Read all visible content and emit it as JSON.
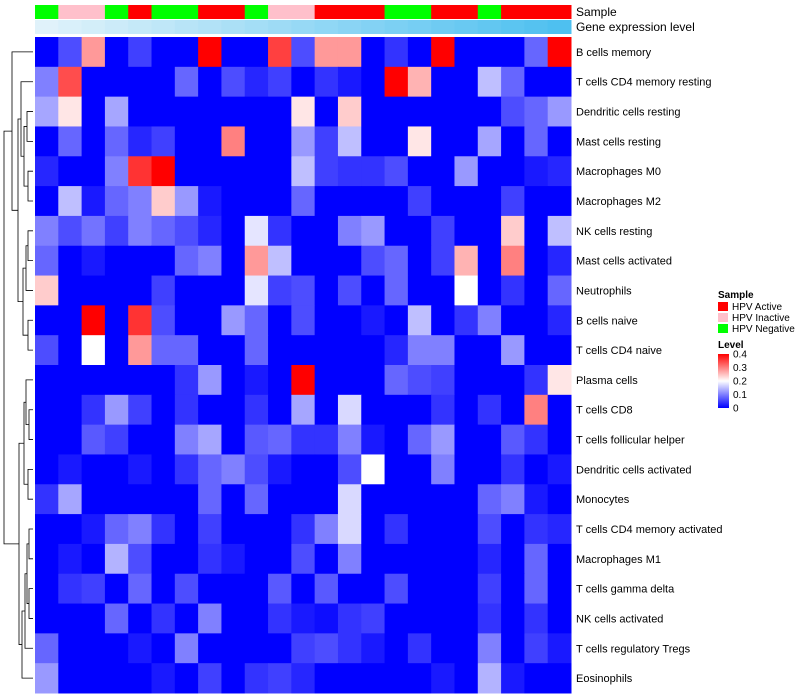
{
  "chart_data": {
    "type": "heatmap",
    "title": "",
    "annotation_tracks": [
      {
        "label": "Sample",
        "values": [
          "Negative",
          "Inactive",
          "Inactive",
          "Negative",
          "Active",
          "Negative",
          "Negative",
          "Active",
          "Active",
          "Negative",
          "Inactive",
          "Inactive",
          "Active",
          "Active",
          "Active",
          "Negative",
          "Negative",
          "Active",
          "Active",
          "Negative",
          "Active",
          "Active",
          "Active"
        ]
      },
      {
        "label": "Gene expression level",
        "values": [
          0,
          0.045,
          0.09,
          0.136,
          0.182,
          0.227,
          0.273,
          0.318,
          0.364,
          0.409,
          0.455,
          0.5,
          0.545,
          0.591,
          0.636,
          0.682,
          0.727,
          0.773,
          0.818,
          0.864,
          0.909,
          0.955,
          1
        ]
      }
    ],
    "rows": [
      "B cells memory",
      "T cells CD4 memory resting",
      "Dendritic cells resting",
      "Mast cells resting",
      "Macrophages M0",
      "Macrophages M2",
      "NK cells resting",
      "Mast cells activated",
      "Neutrophils",
      "B cells naive",
      "T cells CD4 naive",
      "Plasma cells",
      "T cells CD8",
      "T cells follicular helper",
      "Dendritic cells activated",
      "Monocytes",
      "T cells CD4 memory activated",
      "Macrophages M1",
      "T cells gamma delta",
      "NK cells activated",
      "T cells regulatory  Tregs",
      "Eosinophils"
    ],
    "values": [
      [
        0,
        0.06,
        0.28,
        0,
        0.05,
        0,
        0,
        0.4,
        0,
        0,
        0.35,
        0.06,
        0.28,
        0.28,
        0,
        0.04,
        0,
        0.4,
        0,
        0,
        0,
        0.08,
        0.4
      ],
      [
        0.1,
        0.34,
        0,
        0,
        0,
        0,
        0.08,
        0,
        0.06,
        0.03,
        0.05,
        0,
        0.04,
        0.02,
        0,
        0.4,
        0.26,
        0,
        0,
        0.15,
        0.08,
        0,
        0
      ],
      [
        0.13,
        0.22,
        0,
        0.13,
        0,
        0,
        0,
        0,
        0,
        0,
        0,
        0.22,
        0,
        0.24,
        0,
        0,
        0,
        0,
        0,
        0,
        0.06,
        0.08,
        0.12
      ],
      [
        0,
        0.08,
        0,
        0.08,
        0.03,
        0.05,
        0,
        0,
        0.3,
        0,
        0,
        0.12,
        0.05,
        0.15,
        0,
        0,
        0.22,
        0,
        0,
        0.13,
        0,
        0.08,
        0
      ],
      [
        0.03,
        0,
        0,
        0.1,
        0.36,
        0.4,
        0,
        0,
        0,
        0,
        0,
        0.15,
        0.05,
        0.04,
        0.04,
        0.06,
        0,
        0,
        0.12,
        0,
        0,
        0.02,
        0.03
      ],
      [
        0,
        0.15,
        0.02,
        0.08,
        0.1,
        0.24,
        0.12,
        0.02,
        0,
        0,
        0,
        0.08,
        0,
        0,
        0,
        0,
        0.05,
        0,
        0,
        0,
        0.05,
        0,
        0
      ],
      [
        0.1,
        0.06,
        0.09,
        0.05,
        0.1,
        0.08,
        0.06,
        0.03,
        0,
        0.18,
        0.04,
        0,
        0,
        0.1,
        0.12,
        0,
        0,
        0.05,
        0,
        0,
        0.24,
        0,
        0.15
      ],
      [
        0.08,
        0,
        0.02,
        0,
        0,
        0,
        0.08,
        0.1,
        0,
        0.28,
        0.15,
        0,
        0,
        0,
        0.06,
        0.08,
        0,
        0.05,
        0.26,
        0,
        0.3,
        0,
        0.03
      ],
      [
        0.24,
        0,
        0,
        0,
        0,
        0.05,
        0,
        0,
        0,
        0.18,
        0.05,
        0.06,
        0,
        0.06,
        0,
        0.08,
        0,
        0,
        0.2,
        0,
        0.04,
        0,
        0.08
      ],
      [
        0,
        0,
        0.4,
        0,
        0.36,
        0.06,
        0,
        0,
        0.12,
        0.08,
        0,
        0.06,
        0,
        0,
        0.02,
        0,
        0.15,
        0,
        0.04,
        0.1,
        0,
        0,
        0.03
      ],
      [
        0.06,
        0,
        0.2,
        0,
        0.28,
        0.08,
        0.08,
        0,
        0,
        0.08,
        0,
        0,
        0,
        0,
        0,
        0.03,
        0.1,
        0.1,
        0,
        0,
        0.12,
        0,
        0
      ],
      [
        0,
        0,
        0,
        0,
        0,
        0,
        0.04,
        0.12,
        0,
        0.02,
        0,
        0.4,
        0,
        0,
        0,
        0.08,
        0.06,
        0.05,
        0,
        0,
        0,
        0.04,
        0.22
      ],
      [
        0,
        0,
        0.04,
        0.12,
        0.05,
        0,
        0.04,
        0,
        0,
        0.04,
        0,
        0.13,
        0,
        0.17,
        0,
        0,
        0,
        0.04,
        0,
        0.04,
        0,
        0.3,
        0
      ],
      [
        0,
        0,
        0.07,
        0.05,
        0,
        0,
        0.1,
        0.13,
        0,
        0.07,
        0.08,
        0.04,
        0.04,
        0.1,
        0.02,
        0,
        0.08,
        0.12,
        0,
        0,
        0.07,
        0.04,
        0
      ],
      [
        0,
        0.02,
        0,
        0,
        0.02,
        0,
        0.04,
        0.08,
        0.1,
        0.06,
        0.02,
        0,
        0,
        0.06,
        0.2,
        0,
        0,
        0.1,
        0,
        0,
        0.04,
        0,
        0.02
      ],
      [
        0.04,
        0.13,
        0,
        0,
        0,
        0,
        0,
        0.08,
        0,
        0.08,
        0,
        0,
        0,
        0.17,
        0,
        0,
        0,
        0,
        0,
        0.08,
        0.1,
        0.02,
        0
      ],
      [
        0,
        0,
        0.02,
        0.08,
        0.1,
        0.04,
        0,
        0.05,
        0,
        0,
        0,
        0.04,
        0.1,
        0.17,
        0,
        0.04,
        0,
        0,
        0,
        0.06,
        0,
        0.04,
        0.03
      ],
      [
        0,
        0.02,
        0,
        0.14,
        0.06,
        0,
        0,
        0.04,
        0.02,
        0,
        0,
        0.06,
        0,
        0.1,
        0,
        0,
        0,
        0,
        0,
        0.03,
        0,
        0.08,
        0
      ],
      [
        0,
        0.04,
        0.05,
        0,
        0.08,
        0,
        0.06,
        0,
        0,
        0,
        0.07,
        0,
        0.07,
        0,
        0,
        0.06,
        0,
        0,
        0,
        0.05,
        0,
        0.08,
        0
      ],
      [
        0,
        0,
        0,
        0.08,
        0,
        0.04,
        0,
        0.1,
        0,
        0,
        0.04,
        0.02,
        0.01,
        0.04,
        0.05,
        0,
        0,
        0,
        0,
        0.04,
        0,
        0.04,
        0
      ],
      [
        0.08,
        0,
        0,
        0,
        0.02,
        0,
        0.1,
        0,
        0,
        0,
        0,
        0.05,
        0.06,
        0.04,
        0.02,
        0,
        0.04,
        0,
        0,
        0.1,
        0,
        0.05,
        0.02
      ],
      [
        0.12,
        0,
        0,
        0,
        0,
        0.02,
        0,
        0.05,
        0,
        0.04,
        0.05,
        0.03,
        0,
        0,
        0,
        0,
        0,
        0.02,
        0,
        0.14,
        0.02,
        0,
        0
      ]
    ],
    "legend_sample": {
      "title": "Sample",
      "items": [
        {
          "label": "HPV Active",
          "key": "Active",
          "color": "#ff0000"
        },
        {
          "label": "HPV Inactive",
          "key": "Inactive",
          "color": "#ffc0cb"
        },
        {
          "label": "HPV Negative",
          "key": "Negative",
          "color": "#00ff00"
        }
      ]
    },
    "legend_level": {
      "title": "Level",
      "ticks": [
        "0.4",
        "0.3",
        "0.2",
        "0.1",
        "0"
      ],
      "tick_values": [
        0.4,
        0.3,
        0.2,
        0.1,
        0
      ],
      "range": [
        0,
        0.4
      ]
    },
    "colors": {
      "low": "#0000ff",
      "mid": "#ffffff",
      "high": "#ff0000",
      "gene_low": "#e0f2fa",
      "gene_high": "#4ec0f0"
    }
  }
}
